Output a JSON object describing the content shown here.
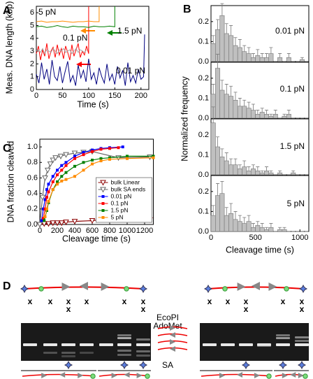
{
  "chart_data": [
    {
      "type": "line",
      "panel": "A",
      "xlabel": "Time (s)",
      "ylabel": "Meas. DNA length (kbp)",
      "xlim": [
        0,
        215
      ],
      "xticks": [
        0,
        50,
        100,
        150,
        200
      ],
      "ylim": [
        0,
        6.5
      ],
      "yticks": [
        0,
        1,
        2,
        3,
        4,
        5,
        6
      ],
      "series": [
        {
          "color": "#000080",
          "x": [
            0,
            5,
            10,
            15,
            20,
            25,
            30,
            35,
            40,
            45,
            50,
            55,
            60,
            65,
            70,
            75,
            80,
            85,
            90,
            95,
            100,
            105,
            110,
            115,
            120,
            125,
            130,
            135,
            140,
            145,
            150,
            155,
            160,
            165,
            170,
            175,
            180,
            185,
            190,
            195,
            200,
            205,
            207
          ],
          "values": [
            1.2,
            0.5,
            2.1,
            0.8,
            1.6,
            0.4,
            2.3,
            1.0,
            0.7,
            1.8,
            0.5,
            1.4,
            2.2,
            0.6,
            1.1,
            0.3,
            1.9,
            0.9,
            1.5,
            0.6,
            2.4,
            0.8,
            1.3,
            0.4,
            1.7,
            1.0,
            0.5,
            2.0,
            0.7,
            1.2,
            0.4,
            1.8,
            0.9,
            1.5,
            0.3,
            2.1,
            0.6,
            1.1,
            0.5,
            1.6,
            0.8,
            1.0,
            4.3
          ]
        },
        {
          "color": "#ff0000",
          "x": [
            0,
            4,
            8,
            12,
            16,
            20,
            24,
            28,
            32,
            36,
            40,
            44,
            48,
            52,
            56,
            60,
            64,
            68,
            72,
            76,
            80,
            84,
            88,
            92,
            96,
            100,
            100
          ],
          "values": [
            2.8,
            3.4,
            2.3,
            3.1,
            2.6,
            3.6,
            2.4,
            3.0,
            3.3,
            2.5,
            3.5,
            2.7,
            3.2,
            2.4,
            3.4,
            2.9,
            2.3,
            3.5,
            2.6,
            3.1,
            3.6,
            2.5,
            3.0,
            2.7,
            3.4,
            2.8,
            6.5
          ]
        },
        {
          "color": "#aaaaaa",
          "x": [
            0,
            4,
            8,
            12,
            16,
            20,
            24,
            28,
            32,
            36,
            40,
            44,
            48,
            52,
            56,
            60,
            64,
            68,
            72,
            76,
            80,
            84,
            88,
            92,
            96
          ],
          "values": [
            3.0,
            3.1,
            2.9,
            3.2,
            2.8,
            3.1,
            3.0,
            2.9,
            3.2,
            3.0,
            2.8,
            3.1,
            3.0,
            3.2,
            2.9,
            3.0,
            3.1,
            2.8,
            3.0,
            3.2,
            2.9,
            3.1,
            3.0,
            2.9,
            3.1
          ]
        },
        {
          "color": "#008000",
          "x": [
            0,
            10,
            20,
            30,
            40,
            50,
            60,
            70,
            80,
            90,
            100,
            110,
            120,
            130,
            140,
            150,
            150
          ],
          "values": [
            4.9,
            4.95,
            4.85,
            4.9,
            5.0,
            4.9,
            4.85,
            4.95,
            4.9,
            4.9,
            4.85,
            4.95,
            4.9,
            4.9,
            4.95,
            4.9,
            6.5
          ]
        },
        {
          "color": "#ff8c00",
          "x": [
            0,
            10,
            20,
            30,
            40,
            50,
            60,
            70,
            80,
            90,
            100,
            110,
            120,
            120
          ],
          "values": [
            5.3,
            5.35,
            5.25,
            5.3,
            5.3,
            5.35,
            5.3,
            5.25,
            5.3,
            5.3,
            5.35,
            5.3,
            5.3,
            6.5
          ]
        }
      ],
      "annotations": [
        {
          "text": "5 pN",
          "color": "#ff8c00"
        },
        {
          "text": "0.1 pN",
          "color": "#ff0000"
        },
        {
          "text": "1.5 pN",
          "color": "#008000"
        },
        {
          "text": "0.01 pN",
          "color": "#000080"
        }
      ]
    },
    {
      "type": "histogram",
      "panel": "B",
      "ylabel": "Normalized frequency",
      "title": "0.01 pN",
      "title_color": "#000080",
      "color": "#c0c0c0",
      "bins": [
        0,
        50,
        100,
        150,
        200,
        250,
        300,
        350,
        400,
        450,
        500,
        550,
        600,
        650,
        700,
        750,
        800,
        850,
        900,
        950,
        1000,
        1050,
        1100
      ],
      "values": [
        0.09,
        0.16,
        0.23,
        0.14,
        0.13,
        0.08,
        0.07,
        0.05,
        0.04,
        0.02,
        0.03,
        0.02,
        0.02,
        0.04,
        0,
        0.02,
        0,
        0.02,
        0,
        0,
        0.01,
        0
      ],
      "errors": [
        0.04,
        0.05,
        0.06,
        0.05,
        0.05,
        0.04,
        0.04,
        0.03,
        0.03,
        0.02,
        0.03,
        0.02,
        0.02,
        0.03,
        0,
        0.02,
        0,
        0.02,
        0,
        0,
        0.01,
        0
      ],
      "xlim": [
        0,
        1100
      ],
      "ylim": [
        0,
        0.28
      ],
      "yticks": [
        {
          "value": 0,
          "label": "0.0"
        },
        0.1,
        0.2
      ]
    },
    {
      "type": "histogram",
      "title": "0.1 pN",
      "title_color": "#ff0000",
      "color": "#c0c0c0",
      "bins": [
        0,
        50,
        100,
        150,
        200,
        250,
        300,
        350,
        400,
        450,
        500,
        550,
        600,
        650,
        700,
        750,
        800,
        850,
        900,
        950,
        1000,
        1050,
        1100
      ],
      "values": [
        0.12,
        0.25,
        0.14,
        0.12,
        0.11,
        0.09,
        0.06,
        0.06,
        0.05,
        0.04,
        0.02,
        0.03,
        0.02,
        0.01,
        0.02,
        0,
        0.01,
        0.02,
        0,
        0,
        0,
        0
      ],
      "errors": [
        0.05,
        0.07,
        0.05,
        0.05,
        0.05,
        0.04,
        0.04,
        0.03,
        0.03,
        0.03,
        0.02,
        0.02,
        0.02,
        0.01,
        0.02,
        0,
        0.01,
        0.02,
        0,
        0,
        0,
        0
      ],
      "xlim": [
        0,
        1100
      ],
      "ylim": [
        0,
        0.28
      ],
      "yticks": [
        {
          "value": 0,
          "label": "0.0"
        },
        0.1,
        0.2
      ]
    },
    {
      "type": "histogram",
      "title": "1.5 pN",
      "title_color": "#008000",
      "color": "#c0c0c0",
      "bins": [
        0,
        50,
        100,
        150,
        200,
        250,
        300,
        350,
        400,
        450,
        500,
        550,
        600,
        650,
        700,
        750,
        800,
        850,
        900,
        950,
        1000,
        1050,
        1100
      ],
      "values": [
        0.26,
        0.14,
        0.09,
        0.07,
        0.05,
        0.05,
        0.03,
        0.04,
        0.02,
        0.03,
        0.02,
        0.01,
        0.02,
        0.01,
        0,
        0.01,
        0,
        0,
        0.01,
        0,
        0,
        0
      ],
      "errors": [
        0.08,
        0.05,
        0.04,
        0.04,
        0.03,
        0.03,
        0.02,
        0.03,
        0.02,
        0.02,
        0.02,
        0.01,
        0.02,
        0.01,
        0,
        0.01,
        0,
        0,
        0.01,
        0,
        0,
        0
      ],
      "xlim": [
        0,
        1100
      ],
      "ylim": [
        0,
        0.28
      ],
      "yticks": [
        {
          "value": 0,
          "label": "0.0"
        },
        0.1,
        0.2
      ]
    },
    {
      "type": "histogram",
      "title": "5 pN",
      "title_color": "#ff8c00",
      "color": "#c0c0c0",
      "xlabel": "Cleavage time (s)",
      "bins": [
        0,
        50,
        100,
        150,
        200,
        250,
        300,
        350,
        400,
        450,
        500,
        550,
        600,
        650,
        700,
        750,
        800,
        850,
        900,
        950,
        1000,
        1050,
        1100
      ],
      "values": [
        0.08,
        0.18,
        0.19,
        0.08,
        0.09,
        0.06,
        0.05,
        0.04,
        0.05,
        0.02,
        0.03,
        0.02,
        0.01,
        0.02,
        0,
        0.01,
        0.01,
        0,
        0,
        0,
        0,
        0
      ],
      "errors": [
        0.05,
        0.06,
        0.06,
        0.04,
        0.05,
        0.04,
        0.03,
        0.03,
        0.03,
        0.02,
        0.02,
        0.02,
        0.01,
        0.02,
        0,
        0.01,
        0.01,
        0,
        0,
        0,
        0,
        0
      ],
      "xlim": [
        0,
        1100
      ],
      "xticks": [
        0,
        500,
        1000
      ],
      "ylim": [
        0,
        0.28
      ],
      "yticks": [
        {
          "value": 0,
          "label": "0.0"
        },
        0.1,
        0.2
      ]
    },
    {
      "type": "line",
      "panel": "C",
      "xlabel": "Cleavage time (s)",
      "ylabel": "DNA fraction cleaved",
      "xlim": [
        0,
        1300
      ],
      "xticks": [
        0,
        200,
        400,
        600,
        800,
        1000,
        1200
      ],
      "ylim": [
        0,
        1.1
      ],
      "yticks": [
        {
          "value": 0,
          "label": "0.0"
        },
        0.2,
        0.4,
        0.6,
        0.8,
        {
          "value": 1,
          "label": "1.0"
        }
      ],
      "legend": "lower right",
      "series": [
        {
          "name": "bulk Linear",
          "color": "#8b0000",
          "marker": "triangle-down-open",
          "x": [
            0,
            50,
            100,
            150,
            200,
            250,
            300,
            400,
            600,
            900,
            1260
          ],
          "values": [
            0,
            0.01,
            0.01,
            0.02,
            0.02,
            0.02,
            0.03,
            0.04,
            0.05,
            0.09,
            0.06
          ]
        },
        {
          "name": "bulk SA ends",
          "color": "#666666",
          "marker": "triangle-down-open",
          "x": [
            0,
            30,
            60,
            90,
            120,
            150,
            180,
            240,
            300,
            400,
            500,
            600,
            900,
            1260
          ],
          "values": [
            0,
            0.35,
            0.6,
            0.7,
            0.78,
            0.83,
            0.86,
            0.88,
            0.9,
            0.92,
            0.93,
            0.94,
            0.86,
            0.87
          ]
        },
        {
          "name": "0.01 pN",
          "color": "#0000ff",
          "marker": "square",
          "x": [
            20,
            40,
            60,
            80,
            100,
            150,
            200,
            250,
            300,
            400,
            500,
            600,
            700,
            800,
            950
          ],
          "values": [
            0.05,
            0.2,
            0.32,
            0.45,
            0.52,
            0.62,
            0.7,
            0.76,
            0.8,
            0.88,
            0.93,
            0.96,
            0.98,
            0.99,
            1.0
          ]
        },
        {
          "name": "0.1 pN",
          "color": "#ff0000",
          "marker": "square",
          "x": [
            40,
            60,
            80,
            100,
            150,
            200,
            250,
            300,
            400,
            500,
            600,
            700,
            800,
            900
          ],
          "values": [
            0.08,
            0.2,
            0.35,
            0.42,
            0.55,
            0.64,
            0.7,
            0.76,
            0.85,
            0.9,
            0.94,
            0.97,
            0.98,
            0.99
          ]
        },
        {
          "name": "1.5 pN",
          "color": "#008000",
          "marker": "square",
          "x": [
            50,
            80,
            100,
            150,
            200,
            250,
            300,
            400,
            500,
            600,
            700,
            800,
            1000,
            1300
          ],
          "values": [
            0.05,
            0.18,
            0.28,
            0.45,
            0.55,
            0.62,
            0.67,
            0.75,
            0.8,
            0.83,
            0.85,
            0.86,
            0.88,
            0.88
          ]
        },
        {
          "name": "5 pN",
          "color": "#ff8c00",
          "marker": "square",
          "x": [
            60,
            80,
            100,
            150,
            200,
            250,
            300,
            400,
            500,
            600,
            700,
            800,
            1000,
            1300
          ],
          "values": [
            0.1,
            0.2,
            0.3,
            0.45,
            0.52,
            0.56,
            0.58,
            0.62,
            0.7,
            0.78,
            0.82,
            0.84,
            0.85,
            0.86
          ]
        }
      ]
    }
  ],
  "gel": {
    "panel": "D",
    "enzyme": "EcoPI",
    "cofactor": "AdoMet",
    "streptavidin": "SA",
    "mark": "x"
  }
}
